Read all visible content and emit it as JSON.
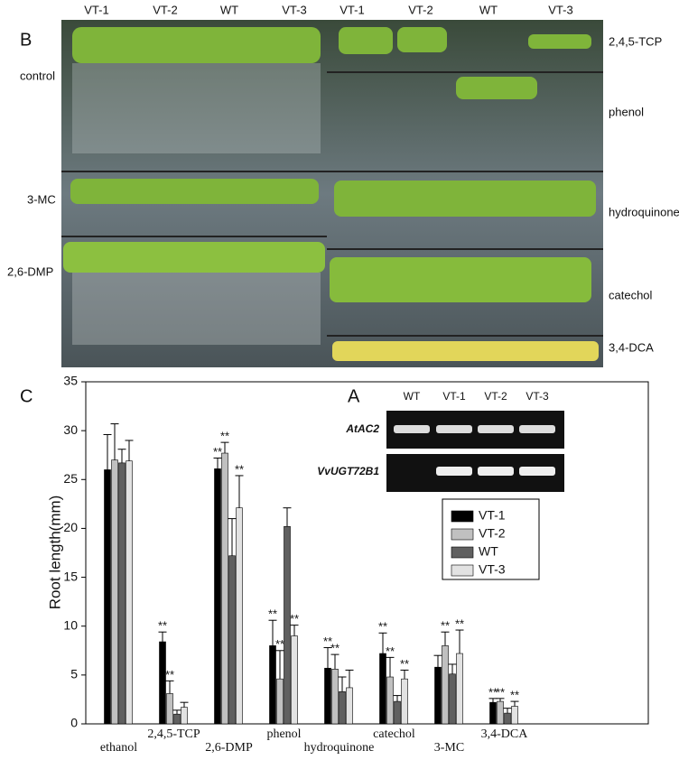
{
  "panel_b": {
    "label": "B",
    "columns_left": [
      "VT-1",
      "VT-2",
      "WT",
      "VT-3"
    ],
    "columns_right": [
      "VT-1",
      "VT-2",
      "WT",
      "VT-3"
    ],
    "rows_left": [
      "control",
      "3-MC",
      "2,6-DMP"
    ],
    "rows_right": [
      "2,4,5-TCP",
      "phenol",
      "hydroquinone",
      "catechol",
      "3,4-DCA"
    ]
  },
  "panel_a": {
    "label": "A",
    "lanes": [
      "WT",
      "VT-1",
      "VT-2",
      "VT-3"
    ],
    "genes": [
      "AtAC2",
      "VvUGT72B1"
    ]
  },
  "chart_data": {
    "type": "bar",
    "panel_label": "C",
    "y_label": "Root length(mm)",
    "categories": [
      "ethanol",
      "2,4,5-TCP",
      "2,6-DMP",
      "phenol",
      "hydroquinone",
      "catechol",
      "3-MC",
      "3,4-DCA"
    ],
    "series": [
      {
        "name": "VT-1",
        "color": "#000000",
        "values": [
          26.0,
          8.4,
          26.1,
          8.0,
          5.7,
          7.2,
          5.8,
          2.2
        ],
        "errors": [
          3.6,
          1.0,
          1.1,
          2.6,
          2.1,
          2.1,
          1.2,
          0.4
        ],
        "significance": [
          null,
          "**",
          "**",
          "**",
          "**",
          "**",
          null,
          "**"
        ]
      },
      {
        "name": "VT-2",
        "color": "#c0c0c0",
        "values": [
          27.0,
          3.1,
          27.7,
          4.6,
          5.6,
          4.8,
          8.0,
          2.3
        ],
        "errors": [
          3.7,
          1.3,
          1.1,
          2.9,
          1.5,
          2.0,
          1.4,
          0.3
        ],
        "significance": [
          null,
          "**",
          "**",
          "**",
          "**",
          "**",
          "**",
          "**"
        ]
      },
      {
        "name": "WT",
        "color": "#606060",
        "values": [
          26.7,
          1.0,
          17.2,
          20.2,
          3.3,
          2.3,
          5.1,
          1.1
        ],
        "errors": [
          1.4,
          0.4,
          3.8,
          1.9,
          1.5,
          0.6,
          1.0,
          0.5
        ],
        "significance": [
          null,
          null,
          null,
          null,
          null,
          null,
          null,
          null
        ]
      },
      {
        "name": "VT-3",
        "color": "#e2e2e2",
        "values": [
          26.9,
          1.7,
          22.1,
          9.0,
          3.7,
          4.6,
          7.2,
          1.8
        ],
        "errors": [
          2.1,
          0.5,
          3.3,
          1.1,
          1.8,
          0.9,
          2.4,
          0.5
        ],
        "significance": [
          null,
          null,
          "**",
          "**",
          null,
          "**",
          "**",
          "**"
        ]
      }
    ],
    "ylim": [
      0,
      35
    ],
    "yticks": [
      0,
      5,
      10,
      15,
      20,
      25,
      30,
      35
    ],
    "grid": false
  }
}
